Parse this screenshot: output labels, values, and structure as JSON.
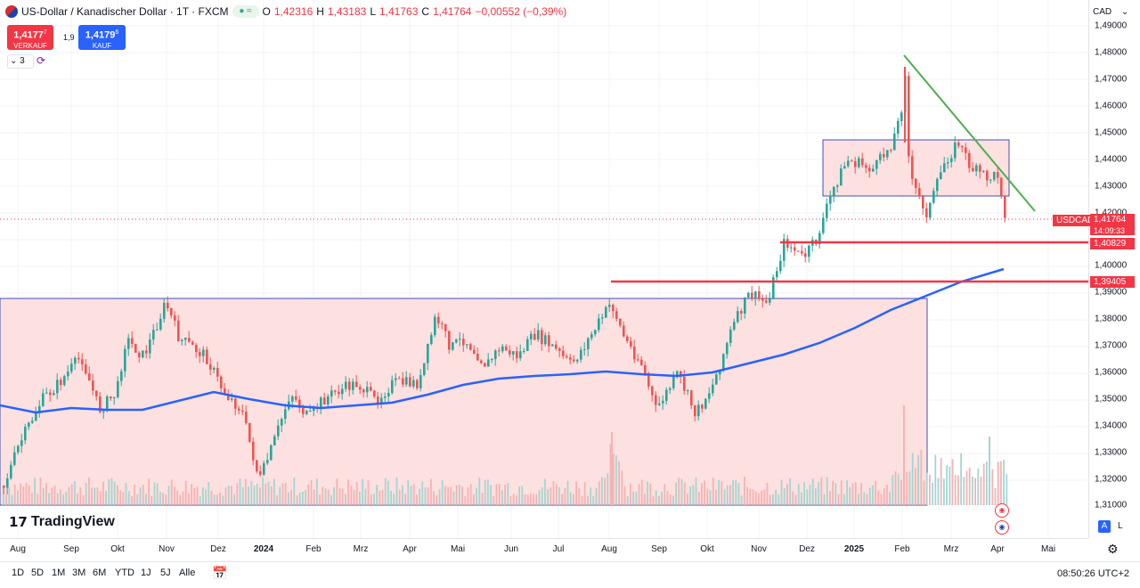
{
  "legend": {
    "symbol": "US-Dollar / Kanadischer Dollar · 1T · FXCM",
    "o_label": "O",
    "o": "1,42316",
    "h_label": "H",
    "h": "1,43183",
    "l_label": "L",
    "l": "1,41763",
    "c_label": "C",
    "c": "1,41764",
    "change": "−0,00552 (−0,39%)"
  },
  "trade": {
    "sell_price": "1,4177",
    "sell_sup": "7",
    "sell_label": "VERKAUF",
    "spread": "1,9",
    "buy_price": "1,4179",
    "buy_sup": "6",
    "buy_label": "KAUF"
  },
  "indicators_count": "3",
  "currency": "CAD",
  "price_scale": {
    "ticks": [
      "1,48000",
      "1,47000",
      "1,46000",
      "1,45000",
      "1,44000",
      "1,43000",
      "1,42000",
      "1,40000",
      "1,39000",
      "1,38000",
      "1,37000",
      "1,36000",
      "1,35000",
      "1,34000",
      "1,33000",
      "1,32000",
      "1,31000"
    ],
    "top_partial": "1,49000"
  },
  "tags": {
    "symbol": "USDCAD",
    "last_price": "1,41764",
    "countdown": "14:09:33",
    "level1": "1,40829",
    "level2": "1,39405"
  },
  "time_axis": {
    "months": [
      "Aug",
      "Sep",
      "Okt",
      "Nov",
      "Dez",
      "2024",
      "Feb",
      "Mrz",
      "Apr",
      "Mai",
      "Jun",
      "Jul",
      "Aug",
      "Sep",
      "Okt",
      "Nov",
      "Dez",
      "2025",
      "Feb",
      "Mrz",
      "Apr",
      "Mai"
    ]
  },
  "scale_buttons": {
    "auto": "A",
    "log": "L"
  },
  "bottom": {
    "timeframes": [
      "1D",
      "5D",
      "1M",
      "3M",
      "6M",
      "YTD",
      "1J",
      "5J",
      "Alle"
    ],
    "clock": "08:50:26 UTC+2"
  },
  "logo": "TradingView",
  "colors": {
    "up": "#26a69a",
    "down": "#ef5350",
    "ma": "#2962ff",
    "trend": "#4caf50",
    "level": "#f23645",
    "zone_fill": "#fde0e0",
    "zone_border": "#3f51b5"
  }
}
